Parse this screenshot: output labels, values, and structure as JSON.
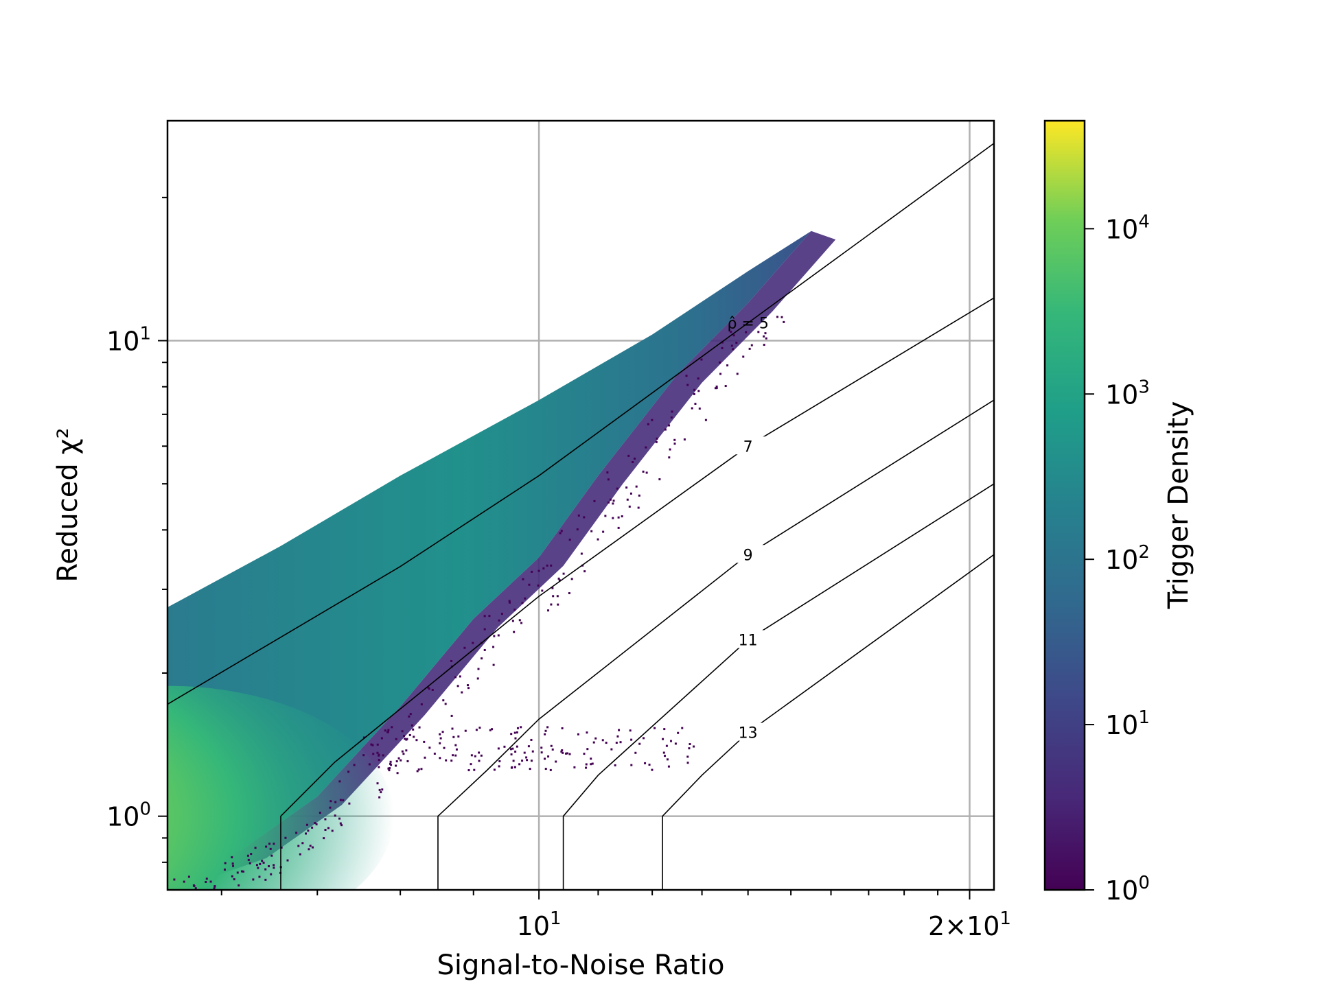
{
  "chart_data": {
    "type": "heatmap",
    "xlabel": "Signal-to-Noise Ratio",
    "ylabel": "Reduced χ²",
    "xscale": "log",
    "yscale": "log",
    "xlim": [
      5.5,
      20.8
    ],
    "ylim": [
      0.7,
      29
    ],
    "grid": true,
    "x_tick_labels": [
      {
        "value": 10,
        "base": "10",
        "exp": "1"
      },
      {
        "value": 20,
        "base": "2×10",
        "exp": "1"
      }
    ],
    "y_tick_labels": [
      {
        "value": 1,
        "base": "10",
        "exp": "0"
      },
      {
        "value": 10,
        "base": "10",
        "exp": "1"
      }
    ],
    "colorbar": {
      "label": "Trigger Density",
      "scale": "log",
      "range": [
        1,
        45000
      ],
      "colormap": "viridis",
      "tick_labels": [
        {
          "value": 1,
          "base": "10",
          "exp": "0"
        },
        {
          "value": 10,
          "base": "10",
          "exp": "1"
        },
        {
          "value": 100,
          "base": "10",
          "exp": "2"
        },
        {
          "value": 1000,
          "base": "10",
          "exp": "3"
        },
        {
          "value": 10000,
          "base": "10",
          "exp": "4"
        }
      ]
    },
    "density": {
      "upper_edge": [
        [
          5.5,
          2.75
        ],
        [
          6.6,
          3.7
        ],
        [
          8.0,
          5.2
        ],
        [
          10.0,
          7.5
        ],
        [
          12.0,
          10.3
        ],
        [
          14.0,
          14.0
        ],
        [
          15.5,
          17.0
        ]
      ],
      "lower_edge": [
        [
          5.5,
          0.75
        ],
        [
          6.2,
          0.85
        ],
        [
          7.0,
          1.1
        ],
        [
          8.0,
          1.7
        ],
        [
          9.0,
          2.6
        ],
        [
          10.0,
          3.5
        ],
        [
          11.0,
          5.2
        ],
        [
          12.5,
          8.5
        ],
        [
          14.0,
          12.0
        ],
        [
          15.5,
          17.0
        ]
      ],
      "peak": {
        "snr": 5.5,
        "chisq": 1.0,
        "density": 40000
      }
    },
    "contours": [
      {
        "level": 5,
        "label": "ρ̂ = 5",
        "snr_vertical": null,
        "points": [
          [
            5.5,
            1.72
          ],
          [
            8.0,
            3.35
          ],
          [
            10.0,
            5.2
          ],
          [
            14.0,
            10.9
          ],
          [
            20.8,
            26.0
          ]
        ]
      },
      {
        "level": 7,
        "label": "7",
        "snr_vertical": 6.6,
        "points": [
          [
            6.6,
            1.0
          ],
          [
            7.2,
            1.3
          ],
          [
            10.0,
            2.9
          ],
          [
            14.0,
            6.0
          ],
          [
            20.8,
            12.3
          ]
        ]
      },
      {
        "level": 9,
        "label": "9",
        "snr_vertical": 8.5,
        "points": [
          [
            8.5,
            1.0
          ],
          [
            9.2,
            1.25
          ],
          [
            10.0,
            1.6
          ],
          [
            14.0,
            3.55
          ],
          [
            20.8,
            7.5
          ]
        ]
      },
      {
        "level": 11,
        "label": "11",
        "snr_vertical": 10.4,
        "points": [
          [
            10.4,
            1.0
          ],
          [
            11.0,
            1.22
          ],
          [
            14.0,
            2.35
          ],
          [
            20.8,
            5.0
          ]
        ]
      },
      {
        "level": 13,
        "label": "13",
        "snr_vertical": 12.2,
        "points": [
          [
            12.2,
            1.0
          ],
          [
            13.0,
            1.22
          ],
          [
            14.0,
            1.5
          ],
          [
            20.8,
            3.55
          ]
        ]
      }
    ],
    "outlier_cluster": {
      "snr_range": [
        7.5,
        13.0
      ],
      "chisq_range": [
        1.25,
        1.55
      ]
    }
  }
}
